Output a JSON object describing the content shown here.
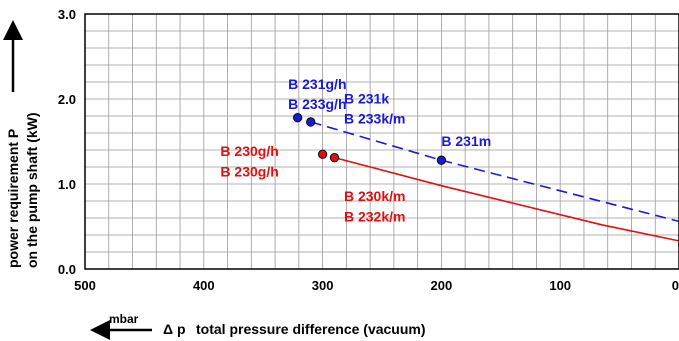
{
  "chart_data": {
    "type": "line",
    "title": "",
    "xlabel": "total pressure difference (vacuum)",
    "xlabel_symbol": "Δ p",
    "x_unit": "mbar",
    "ylabel_line1": "power requirement P",
    "ylabel_line2": "on the pump shaft (kW)",
    "xlim": [
      500,
      0
    ],
    "ylim": [
      0,
      3
    ],
    "x_reversed": true,
    "grid": true,
    "x_ticks": [
      {
        "value": 500,
        "label": "500"
      },
      {
        "value": 400,
        "label": "400"
      },
      {
        "value": 300,
        "label": "300"
      },
      {
        "value": 200,
        "label": "200"
      },
      {
        "value": 100,
        "label": "100"
      },
      {
        "value": 0,
        "label": "0"
      }
    ],
    "y_ticks": [
      {
        "value": 0,
        "label": "0.0"
      },
      {
        "value": 1,
        "label": "1.0"
      },
      {
        "value": 2,
        "label": "2.0"
      },
      {
        "value": 3,
        "label": "3.0"
      }
    ],
    "series": [
      {
        "color": "#1a1ad6",
        "style": "dashed",
        "points": [
          [
            310,
            1.73
          ],
          [
            200,
            1.28
          ],
          [
            0,
            0.56
          ]
        ],
        "markers": [
          [
            321,
            1.78
          ],
          [
            310,
            1.73
          ],
          [
            200,
            1.28
          ]
        ]
      },
      {
        "color": "#e01010",
        "style": "solid",
        "points": [
          [
            290,
            1.31
          ],
          [
            200,
            0.98
          ],
          [
            65,
            0.52
          ],
          [
            0,
            0.33
          ]
        ],
        "markers": [
          [
            300,
            1.35
          ],
          [
            290,
            1.31
          ]
        ]
      }
    ],
    "annotations": [
      {
        "text": "B 231g/h",
        "color": "#1a1ad6",
        "x": 329,
        "y": 2.12
      },
      {
        "text": "B 233g/h",
        "color": "#1a1ad6",
        "x": 329,
        "y": 1.88
      },
      {
        "text": "B 231k",
        "color": "#1a1ad6",
        "x": 282,
        "y": 1.95
      },
      {
        "text": "B 233k/m",
        "color": "#1a1ad6",
        "x": 282,
        "y": 1.71
      },
      {
        "text": "B 231m",
        "color": "#1a1ad6",
        "x": 200,
        "y": 1.45
      },
      {
        "text": "B 230g/h",
        "color": "#e01010",
        "x": 386,
        "y": 1.33
      },
      {
        "text": "B 230g/h",
        "color": "#e01010",
        "x": 386,
        "y": 1.09
      },
      {
        "text": "B 230k/m",
        "color": "#e01010",
        "x": 282,
        "y": 0.8
      },
      {
        "text": "B 232k/m",
        "color": "#e01010",
        "x": 282,
        "y": 0.56
      }
    ]
  }
}
